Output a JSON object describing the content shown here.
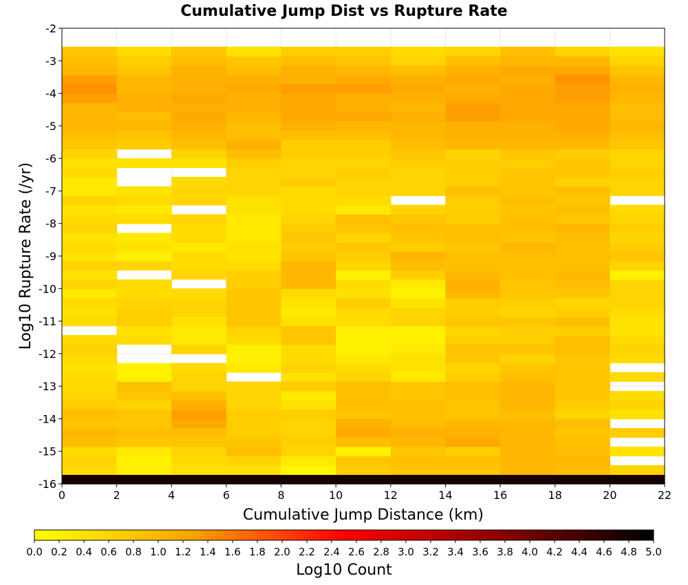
{
  "chart_data": {
    "type": "heatmap",
    "title": "Cumulative Jump Dist vs Rupture Rate",
    "xlabel": "Cumulative Jump Distance (km)",
    "ylabel": "Log10 Rupture Rate (/yr)",
    "colorbar_label": "Log10 Count",
    "xlim": [
      0,
      22
    ],
    "ylim": [
      -16,
      -2
    ],
    "xticks": [
      0,
      2,
      4,
      6,
      8,
      10,
      12,
      14,
      16,
      18,
      20,
      22
    ],
    "yticks": [
      -2,
      -3,
      -4,
      -5,
      -6,
      -7,
      -8,
      -9,
      -10,
      -11,
      -12,
      -13,
      -14,
      -15,
      -16
    ],
    "color_range": [
      0,
      5
    ],
    "colorbar_ticks": [
      "0.0",
      "0.2",
      "0.4",
      "0.6",
      "0.8",
      "1.0",
      "1.2",
      "1.4",
      "1.6",
      "1.8",
      "2.0",
      "2.2",
      "2.4",
      "2.6",
      "2.8",
      "3.0",
      "3.2",
      "3.4",
      "3.6",
      "3.8",
      "4.0",
      "4.2",
      "4.4",
      "4.6",
      "4.8",
      "5.0"
    ],
    "colormap": [
      "#ffff00",
      "#ffa500",
      "#ff0000",
      "#8b0000",
      "#000000"
    ],
    "grid": true,
    "x_bin_width": 2,
    "y_bin_height": 0.286,
    "x_bins": [
      1,
      3,
      5,
      7,
      9,
      11,
      13,
      15,
      17,
      19,
      21
    ],
    "y_bins": [
      -15.86,
      -15.57,
      -15.29,
      -15.0,
      -14.71,
      -14.43,
      -14.14,
      -13.86,
      -13.57,
      -13.29,
      -13.0,
      -12.71,
      -12.43,
      -12.14,
      -11.86,
      -11.57,
      -11.29,
      -11.0,
      -10.71,
      -10.43,
      -10.14,
      -9.86,
      -9.57,
      -9.29,
      -9.0,
      -8.71,
      -8.43,
      -8.14,
      -7.86,
      -7.57,
      -7.29,
      -7.0,
      -6.71,
      -6.43,
      -6.14,
      -5.86,
      -5.57,
      -5.29,
      -5.0,
      -4.71,
      -4.43,
      -4.14,
      -3.86,
      -3.57,
      -3.29,
      -3.0,
      -2.71
    ],
    "values": [
      [
        4.8,
        4.8,
        4.8,
        4.8,
        4.8,
        4.8,
        4.8,
        4.8,
        4.8,
        4.8,
        4.8
      ],
      [
        0.5,
        0.2,
        0.4,
        0.4,
        0.1,
        0.7,
        0.8,
        0.8,
        1.0,
        0.9,
        0.6
      ],
      [
        0.6,
        0.2,
        0.5,
        0.6,
        0.3,
        0.8,
        0.9,
        0.9,
        1.0,
        1.0,
        null
      ],
      [
        0.5,
        0.3,
        0.6,
        0.9,
        0.6,
        0.2,
        0.8,
        0.7,
        1.0,
        0.9,
        0.4
      ],
      [
        0.9,
        0.8,
        0.8,
        0.8,
        0.7,
        0.9,
        1.0,
        1.2,
        1.0,
        0.9,
        null
      ],
      [
        1.0,
        0.9,
        0.9,
        0.7,
        0.6,
        1.2,
        1.1,
        1.1,
        1.0,
        0.8,
        0.7
      ],
      [
        0.8,
        0.8,
        1.2,
        0.7,
        0.6,
        1.1,
        0.9,
        1.0,
        1.0,
        0.9,
        null
      ],
      [
        0.9,
        0.8,
        1.3,
        0.7,
        0.7,
        0.8,
        0.9,
        0.8,
        0.9,
        0.6,
        0.4
      ],
      [
        0.7,
        0.6,
        1.1,
        0.6,
        0.4,
        0.9,
        0.9,
        0.8,
        1.0,
        0.7,
        0.6
      ],
      [
        0.6,
        0.8,
        0.9,
        0.6,
        0.3,
        0.9,
        0.8,
        0.9,
        1.0,
        0.8,
        0.5
      ],
      [
        0.5,
        0.9,
        0.6,
        0.6,
        0.7,
        0.9,
        0.8,
        0.9,
        1.0,
        0.8,
        null
      ],
      [
        0.5,
        0.2,
        0.6,
        null,
        0.4,
        0.6,
        0.3,
        0.7,
        0.9,
        0.8,
        0.5
      ],
      [
        0.4,
        0.2,
        0.5,
        0.3,
        0.6,
        0.5,
        0.4,
        0.6,
        0.8,
        0.8,
        null
      ],
      [
        0.5,
        null,
        null,
        0.2,
        0.5,
        0.3,
        0.4,
        0.8,
        0.6,
        0.8,
        0.5
      ],
      [
        0.6,
        null,
        0.6,
        0.2,
        0.5,
        0.2,
        0.3,
        0.8,
        0.8,
        0.9,
        0.6
      ],
      [
        0.5,
        0.5,
        0.3,
        0.5,
        0.8,
        0.2,
        0.2,
        0.7,
        0.7,
        0.9,
        0.5
      ],
      [
        null,
        0.4,
        0.3,
        0.6,
        0.8,
        0.2,
        0.2,
        0.6,
        0.7,
        0.7,
        0.4
      ],
      [
        0.5,
        0.7,
        0.4,
        0.8,
        0.4,
        0.5,
        0.6,
        0.8,
        0.8,
        0.9,
        0.4
      ],
      [
        0.4,
        0.7,
        0.6,
        0.8,
        0.3,
        0.5,
        0.6,
        0.7,
        0.6,
        0.7,
        0.5
      ],
      [
        0.5,
        0.6,
        0.6,
        0.8,
        0.4,
        0.7,
        0.4,
        0.7,
        0.7,
        0.6,
        0.6
      ],
      [
        0.3,
        0.5,
        0.5,
        0.8,
        0.5,
        0.4,
        0.2,
        1.0,
        0.8,
        0.8,
        0.6
      ],
      [
        0.6,
        0.5,
        null,
        0.7,
        1.0,
        0.5,
        0.3,
        1.1,
        0.8,
        0.9,
        0.6
      ],
      [
        0.4,
        null,
        0.6,
        0.7,
        1.0,
        0.2,
        0.7,
        1.0,
        0.9,
        1.0,
        0.2
      ],
      [
        0.6,
        0.6,
        0.5,
        0.5,
        1.0,
        0.6,
        0.9,
        0.9,
        0.9,
        0.9,
        0.6
      ],
      [
        0.4,
        0.2,
        0.5,
        0.4,
        0.8,
        0.7,
        1.0,
        0.9,
        0.9,
        0.9,
        0.8
      ],
      [
        0.5,
        0.4,
        0.3,
        0.4,
        0.7,
        0.8,
        0.7,
        0.8,
        1.0,
        0.9,
        0.7
      ],
      [
        0.4,
        0.3,
        0.5,
        0.3,
        0.8,
        0.6,
        0.8,
        0.9,
        0.8,
        0.9,
        0.6
      ],
      [
        0.6,
        null,
        0.5,
        0.3,
        0.7,
        0.8,
        0.9,
        0.9,
        0.9,
        1.0,
        0.7
      ],
      [
        0.5,
        0.5,
        0.6,
        0.3,
        0.6,
        0.9,
        0.8,
        0.7,
        0.9,
        0.8,
        0.6
      ],
      [
        0.4,
        0.3,
        null,
        0.4,
        0.5,
        0.3,
        0.6,
        0.7,
        0.8,
        0.9,
        0.5
      ],
      [
        0.6,
        0.5,
        0.6,
        0.4,
        0.5,
        0.5,
        null,
        0.7,
        0.9,
        0.8,
        null
      ],
      [
        0.3,
        0.4,
        0.6,
        0.6,
        0.5,
        0.6,
        0.6,
        0.9,
        0.8,
        0.9,
        0.6
      ],
      [
        0.3,
        null,
        0.5,
        0.6,
        0.7,
        0.6,
        0.6,
        0.7,
        0.8,
        0.6,
        0.6
      ],
      [
        0.5,
        null,
        null,
        0.6,
        0.6,
        0.7,
        0.6,
        0.7,
        0.8,
        0.8,
        0.7
      ],
      [
        0.4,
        0.4,
        0.4,
        0.7,
        0.6,
        0.6,
        0.7,
        0.7,
        0.7,
        0.8,
        0.6
      ],
      [
        0.6,
        null,
        0.6,
        0.9,
        0.7,
        0.7,
        0.8,
        0.6,
        0.8,
        0.7,
        0.6
      ],
      [
        0.8,
        0.7,
        0.9,
        1.1,
        0.7,
        0.7,
        0.9,
        1.0,
        1.0,
        1.0,
        0.8
      ],
      [
        0.9,
        0.8,
        1.0,
        0.9,
        0.9,
        0.9,
        1.0,
        1.1,
        1.1,
        1.1,
        0.9
      ],
      [
        1.0,
        1.0,
        1.1,
        0.9,
        1.1,
        1.0,
        1.0,
        1.1,
        1.1,
        1.2,
        1.0
      ],
      [
        1.0,
        0.9,
        1.2,
        1.0,
        1.2,
        1.2,
        1.1,
        1.3,
        1.2,
        1.2,
        0.9
      ],
      [
        1.0,
        1.1,
        1.1,
        1.1,
        1.2,
        1.1,
        1.0,
        1.3,
        1.2,
        1.2,
        0.9
      ],
      [
        1.3,
        1.1,
        1.2,
        1.1,
        1.2,
        1.1,
        1.1,
        1.2,
        1.2,
        1.3,
        1.0
      ],
      [
        1.4,
        1.0,
        1.1,
        1.2,
        1.3,
        1.3,
        1.2,
        1.1,
        1.2,
        1.3,
        1.1
      ],
      [
        1.3,
        1.0,
        1.1,
        1.1,
        1.1,
        1.2,
        1.1,
        1.2,
        1.1,
        1.4,
        1.0
      ],
      [
        1.0,
        0.8,
        1.1,
        0.9,
        1.1,
        1.0,
        0.9,
        1.1,
        1.2,
        1.2,
        0.8
      ],
      [
        0.9,
        0.7,
        0.9,
        0.8,
        0.9,
        0.8,
        0.6,
        0.9,
        1.0,
        1.0,
        0.6
      ],
      [
        0.8,
        0.5,
        0.8,
        0.4,
        0.7,
        0.7,
        0.5,
        0.6,
        0.9,
        0.6,
        0.4
      ]
    ]
  }
}
